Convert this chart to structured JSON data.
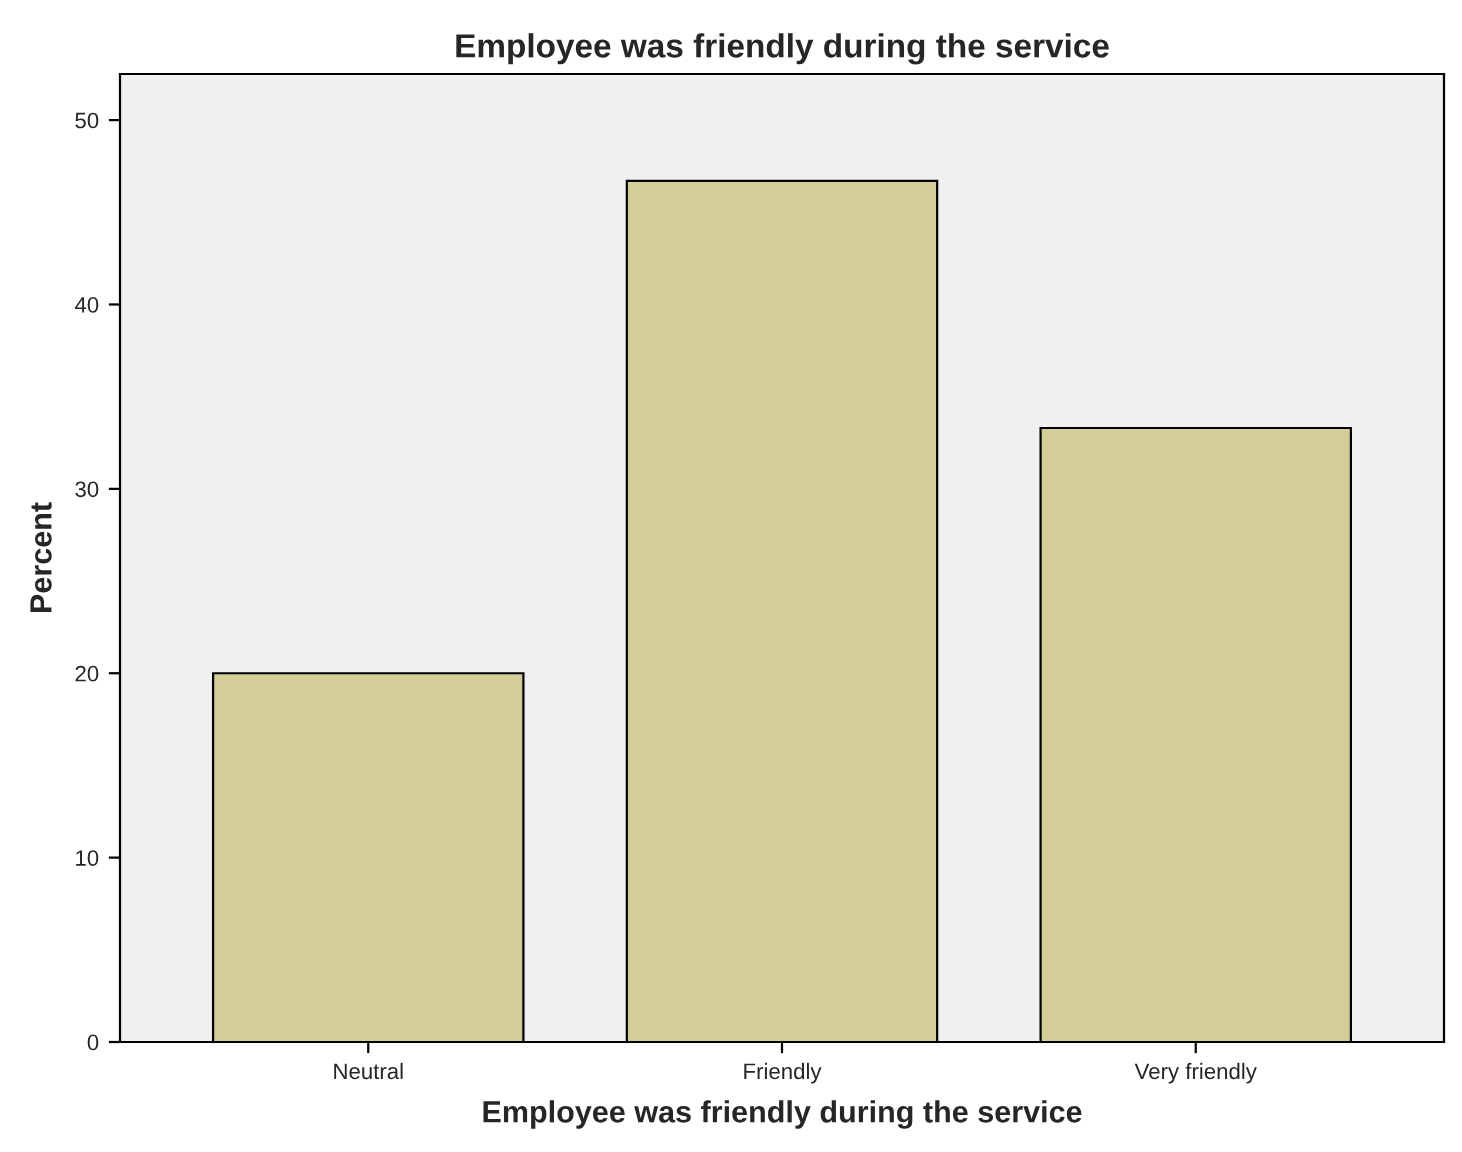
{
  "chart_data": {
    "type": "bar",
    "title": "Employee was friendly during the service",
    "xlabel": "Employee was friendly during the service",
    "ylabel": "Percent",
    "categories": [
      "Neutral",
      "Friendly",
      "Very friendly"
    ],
    "series": [
      {
        "color": "#d3ce97",
        "values": [
          20,
          46.7,
          33.3
        ]
      }
    ],
    "ylim": [
      0,
      52.5
    ],
    "yticks": [
      0,
      10,
      20,
      30,
      40,
      50
    ],
    "grid": false,
    "legend": false
  }
}
